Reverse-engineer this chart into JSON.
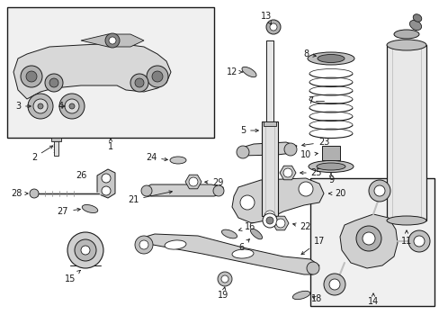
{
  "bg_color": "#ffffff",
  "line_color": "#1a1a1a",
  "box_fill": "#f0f0f0",
  "fig_width": 4.89,
  "fig_height": 3.6,
  "dpi": 100
}
